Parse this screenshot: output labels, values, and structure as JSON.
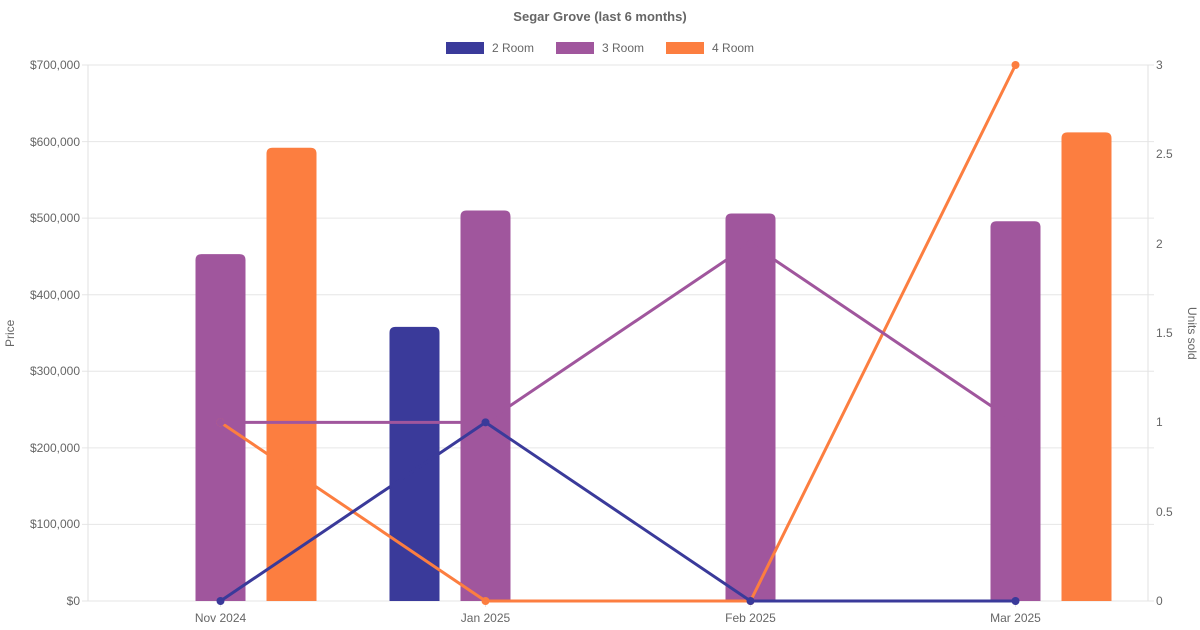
{
  "header": {
    "title": "Segar Grove (last 6 months)"
  },
  "legend": {
    "items": [
      {
        "label": "2 Room",
        "color": "#3a3a9a"
      },
      {
        "label": "3 Room",
        "color": "#a0569d"
      },
      {
        "label": "4 Room",
        "color": "#fc7e40"
      }
    ]
  },
  "colors": {
    "grid": "#e6e6e6",
    "axis_border": "#e2e2e2",
    "text": "#666666",
    "background": "#ffffff"
  },
  "chart_data": {
    "type": "bar+line combo",
    "title": "Segar Grove (last 6 months)",
    "categories": [
      "Nov 2024",
      "Jan 2025",
      "Feb 2025",
      "Mar 2025"
    ],
    "grid": "horizontal only",
    "legend_position": "top",
    "axes": {
      "left": {
        "label": "Price",
        "min": 0,
        "max": 700000,
        "step": 100000,
        "tick_values": [
          0,
          100000,
          200000,
          300000,
          400000,
          500000,
          600000,
          700000
        ],
        "tick_labels": [
          "$0",
          "$100,000",
          "$200,000",
          "$300,000",
          "$400,000",
          "$500,000",
          "$600,000",
          "$700,000"
        ]
      },
      "right": {
        "label": "Units sold",
        "min": 0,
        "max": 3,
        "step": 0.5,
        "tick_values": [
          0,
          0.5,
          1,
          1.5,
          2,
          2.5,
          3
        ],
        "tick_labels": [
          "0",
          "0.5",
          "1",
          "1.5",
          "2",
          "2.5",
          "3"
        ]
      }
    },
    "bar_series": [
      {
        "name": "2 Room",
        "color": "#3a3a9a",
        "axis": "left",
        "values": [
          null,
          358000,
          null,
          null
        ]
      },
      {
        "name": "3 Room",
        "color": "#a0569d",
        "axis": "left",
        "values": [
          453000,
          510000,
          506000,
          496000
        ]
      },
      {
        "name": "4 Room",
        "color": "#fc7e40",
        "axis": "left",
        "values": [
          592000,
          null,
          null,
          612000
        ]
      }
    ],
    "line_series": [
      {
        "name": "2 Room",
        "color": "#3a3a9a",
        "axis": "right",
        "values": [
          0,
          1,
          0,
          0
        ]
      },
      {
        "name": "3 Room",
        "color": "#a0569d",
        "axis": "right",
        "values": [
          1,
          1,
          2,
          1
        ]
      },
      {
        "name": "4 Room",
        "color": "#fc7e40",
        "axis": "right",
        "values": [
          1,
          0,
          0,
          3
        ]
      }
    ]
  }
}
